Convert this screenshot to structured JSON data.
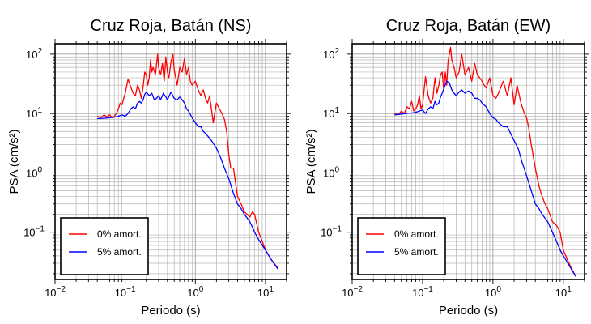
{
  "chart_data": [
    {
      "type": "line",
      "title": "Cruz Roja, Batán (NS)",
      "xlabel": "Periodo (s)",
      "ylabel": "PSA (cm/s²)",
      "x_scale": "log",
      "y_scale": "log",
      "xlim": [
        0.01,
        20
      ],
      "ylim": [
        0.016,
        150
      ],
      "x_ticks": [
        {
          "value": 0.01,
          "base": "10",
          "exp": "−2"
        },
        {
          "value": 0.1,
          "base": "10",
          "exp": "−1"
        },
        {
          "value": 1,
          "base": "10",
          "exp": "0"
        },
        {
          "value": 10,
          "base": "10",
          "exp": "1"
        }
      ],
      "y_ticks": [
        {
          "value": 0.1,
          "base": "10",
          "exp": "−1"
        },
        {
          "value": 1,
          "base": "10",
          "exp": "0"
        },
        {
          "value": 10,
          "base": "10",
          "exp": "1"
        },
        {
          "value": 100,
          "base": "10",
          "exp": "2"
        }
      ],
      "grid": true,
      "legend_position": "bottom-left",
      "series": [
        {
          "name": "0% amort.",
          "color": "#ff0000",
          "x": [
            0.04,
            0.045,
            0.05,
            0.055,
            0.06,
            0.065,
            0.07,
            0.075,
            0.08,
            0.085,
            0.09,
            0.1,
            0.11,
            0.12,
            0.13,
            0.14,
            0.15,
            0.16,
            0.17,
            0.18,
            0.19,
            0.2,
            0.21,
            0.22,
            0.23,
            0.24,
            0.25,
            0.27,
            0.29,
            0.3,
            0.32,
            0.34,
            0.36,
            0.38,
            0.4,
            0.42,
            0.45,
            0.48,
            0.5,
            0.55,
            0.6,
            0.65,
            0.7,
            0.75,
            0.8,
            0.85,
            0.9,
            1.0,
            1.1,
            1.2,
            1.3,
            1.4,
            1.5,
            1.6,
            1.8,
            2.0,
            2.2,
            2.4,
            2.6,
            2.8,
            3.0,
            3.2,
            3.5,
            4.0,
            4.5,
            5.0,
            5.5,
            6.0,
            6.5,
            7.0,
            8.0,
            9.0,
            10.0,
            12.0,
            15.0
          ],
          "y": [
            9,
            8.5,
            9.5,
            8.8,
            9.5,
            8.5,
            9,
            10,
            12,
            15,
            14,
            22,
            38,
            28,
            22,
            20,
            30,
            25,
            18,
            28,
            50,
            45,
            30,
            40,
            80,
            50,
            60,
            45,
            100,
            60,
            45,
            70,
            35,
            90,
            50,
            40,
            75,
            100,
            55,
            30,
            60,
            50,
            85,
            45,
            60,
            35,
            30,
            35,
            25,
            20,
            25,
            18,
            15,
            20,
            7,
            15,
            12,
            10,
            8,
            5,
            2,
            1.2,
            1.2,
            0.4,
            0.3,
            0.22,
            0.2,
            0.18,
            0.22,
            0.2,
            0.1,
            0.07,
            0.05,
            0.035,
            0.025
          ]
        },
        {
          "name": "5% amort.",
          "color": "#0000ff",
          "x": [
            0.04,
            0.05,
            0.06,
            0.07,
            0.08,
            0.09,
            0.1,
            0.11,
            0.12,
            0.13,
            0.14,
            0.15,
            0.16,
            0.17,
            0.18,
            0.19,
            0.2,
            0.22,
            0.24,
            0.26,
            0.28,
            0.3,
            0.32,
            0.35,
            0.38,
            0.4,
            0.45,
            0.5,
            0.55,
            0.6,
            0.65,
            0.7,
            0.75,
            0.8,
            0.9,
            1.0,
            1.1,
            1.2,
            1.3,
            1.5,
            1.7,
            2.0,
            2.3,
            2.6,
            3.0,
            3.5,
            4.0,
            4.5,
            5.0,
            6.0,
            7.0,
            8.0,
            10.0,
            12.0,
            15.0
          ],
          "y": [
            8.2,
            8.3,
            8.5,
            8.7,
            9,
            9.5,
            9,
            10,
            12,
            13,
            12,
            15,
            16,
            15,
            17,
            21,
            23,
            20,
            22,
            17,
            18,
            20,
            17,
            22,
            19,
            17,
            23,
            18,
            17,
            19,
            17,
            15,
            12,
            11,
            8.5,
            7,
            6,
            6,
            5,
            4.2,
            3.5,
            2.6,
            1.8,
            1.2,
            0.8,
            0.45,
            0.3,
            0.25,
            0.2,
            0.15,
            0.1,
            0.075,
            0.05,
            0.035,
            0.024
          ]
        }
      ]
    },
    {
      "type": "line",
      "title": "Cruz Roja, Batán (EW)",
      "xlabel": "Periodo (s)",
      "ylabel": "PSA (cm/s²)",
      "x_scale": "log",
      "y_scale": "log",
      "xlim": [
        0.01,
        20
      ],
      "ylim": [
        0.016,
        150
      ],
      "x_ticks": [
        {
          "value": 0.01,
          "base": "10",
          "exp": "−2"
        },
        {
          "value": 0.1,
          "base": "10",
          "exp": "−1"
        },
        {
          "value": 1,
          "base": "10",
          "exp": "0"
        },
        {
          "value": 10,
          "base": "10",
          "exp": "1"
        }
      ],
      "y_ticks": [
        {
          "value": 0.1,
          "base": "10",
          "exp": "−1"
        },
        {
          "value": 1,
          "base": "10",
          "exp": "0"
        },
        {
          "value": 10,
          "base": "10",
          "exp": "1"
        },
        {
          "value": 100,
          "base": "10",
          "exp": "2"
        }
      ],
      "grid": true,
      "legend_position": "bottom-left",
      "series": [
        {
          "name": "0% amort.",
          "color": "#ff0000",
          "x": [
            0.04,
            0.045,
            0.05,
            0.055,
            0.06,
            0.065,
            0.07,
            0.075,
            0.08,
            0.085,
            0.09,
            0.095,
            0.1,
            0.11,
            0.12,
            0.13,
            0.14,
            0.15,
            0.16,
            0.17,
            0.18,
            0.19,
            0.2,
            0.21,
            0.22,
            0.23,
            0.24,
            0.25,
            0.26,
            0.28,
            0.3,
            0.33,
            0.36,
            0.4,
            0.45,
            0.5,
            0.55,
            0.6,
            0.65,
            0.7,
            0.75,
            0.8,
            0.9,
            1.0,
            1.1,
            1.2,
            1.4,
            1.6,
            1.8,
            2.0,
            2.2,
            2.5,
            2.8,
            3.0,
            3.2,
            3.5,
            4.0,
            4.5,
            5.0,
            5.5,
            6.0,
            7.0,
            8.0,
            9.0,
            10.0,
            12.0,
            15.0
          ],
          "y": [
            10,
            9.5,
            11,
            10,
            13,
            12,
            16,
            11,
            12,
            14,
            20,
            12,
            14,
            42,
            20,
            15,
            18,
            40,
            22,
            30,
            45,
            50,
            25,
            50,
            30,
            75,
            100,
            130,
            80,
            60,
            40,
            50,
            100,
            45,
            60,
            35,
            70,
            45,
            40,
            35,
            30,
            27,
            40,
            20,
            18,
            22,
            35,
            20,
            40,
            14,
            30,
            15,
            10,
            8.5,
            6,
            3,
            1.2,
            0.6,
            0.4,
            0.3,
            0.25,
            0.15,
            0.13,
            0.1,
            0.05,
            0.03,
            0.018
          ]
        },
        {
          "name": "5% amort.",
          "color": "#0000ff",
          "x": [
            0.04,
            0.05,
            0.06,
            0.07,
            0.08,
            0.09,
            0.1,
            0.11,
            0.12,
            0.13,
            0.14,
            0.15,
            0.16,
            0.17,
            0.18,
            0.19,
            0.2,
            0.22,
            0.24,
            0.26,
            0.28,
            0.3,
            0.33,
            0.36,
            0.4,
            0.45,
            0.5,
            0.55,
            0.6,
            0.65,
            0.7,
            0.8,
            0.9,
            1.0,
            1.1,
            1.2,
            1.4,
            1.6,
            1.8,
            2.0,
            2.3,
            2.6,
            3.0,
            3.5,
            4.0,
            4.5,
            5.0,
            6.0,
            7.0,
            8.0,
            9.0,
            10.0,
            12.0,
            15.0
          ],
          "y": [
            9.5,
            9.8,
            10,
            10.2,
            10.5,
            11,
            11.5,
            10,
            12,
            13,
            12,
            16,
            14,
            15,
            19,
            22,
            26,
            35,
            33,
            25,
            22,
            20,
            23,
            25,
            22,
            24,
            22,
            18,
            18,
            17,
            15,
            13,
            10,
            8.5,
            8,
            7,
            6,
            6,
            4.5,
            3.5,
            2.5,
            1.5,
            0.9,
            0.5,
            0.3,
            0.25,
            0.2,
            0.15,
            0.1,
            0.07,
            0.05,
            0.04,
            0.028,
            0.018
          ]
        }
      ]
    }
  ]
}
